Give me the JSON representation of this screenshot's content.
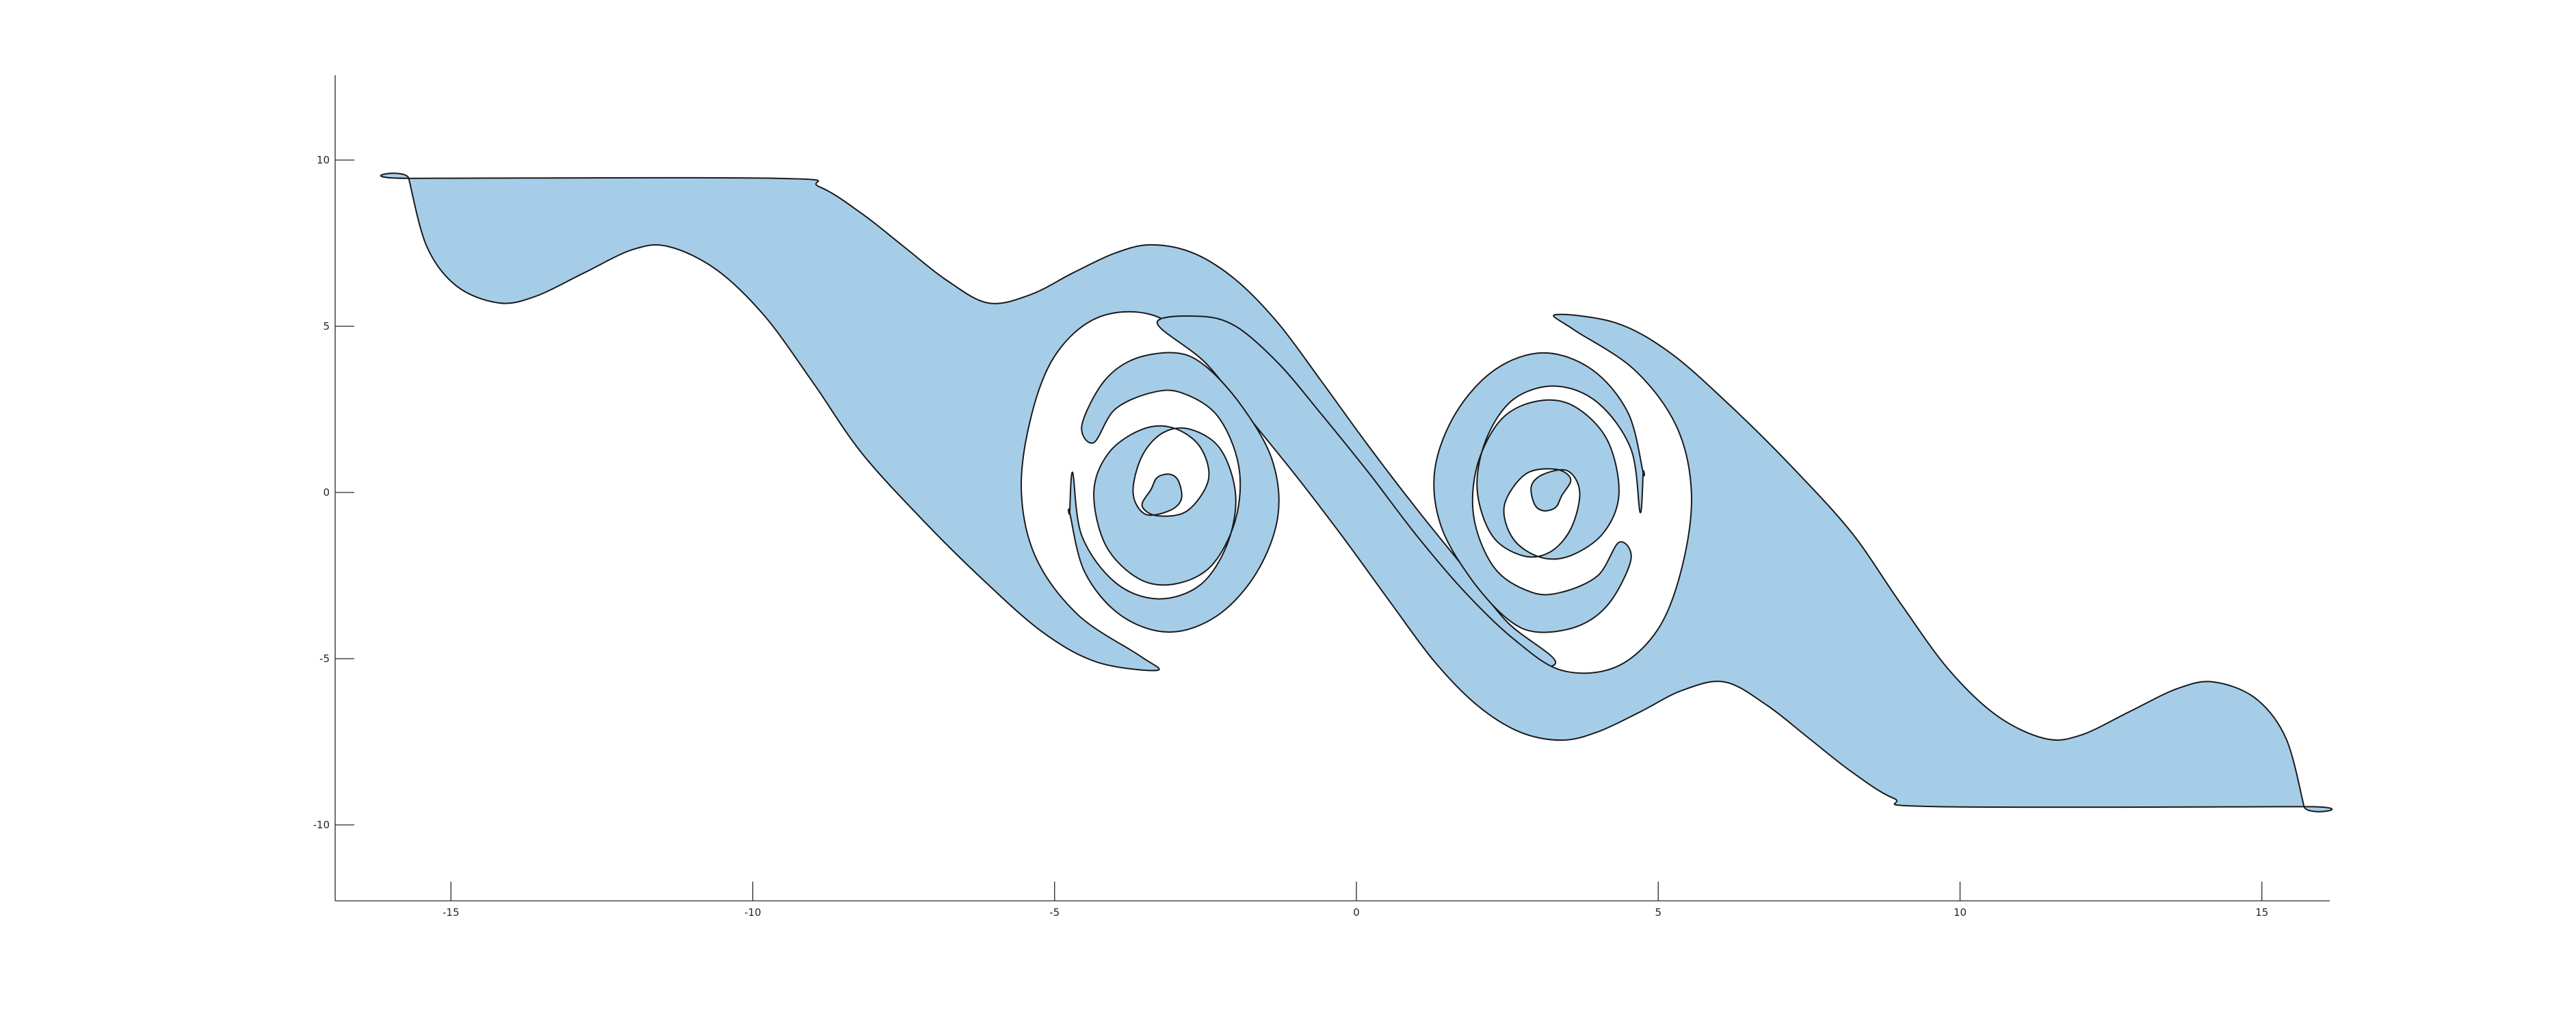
{
  "chart_data": {
    "type": "area",
    "title": "",
    "xlabel": "",
    "ylabel": "",
    "xlim": [
      -17,
      16.5
    ],
    "ylim": [
      -12.2,
      12.5
    ],
    "xticks": [
      -15,
      -10,
      -5,
      0,
      5,
      10,
      15
    ],
    "yticks": [
      -10,
      -5,
      0,
      5,
      10
    ],
    "xtick_labels": [
      "-15",
      "-10",
      "-5",
      "0",
      "5",
      "10",
      "15"
    ],
    "ytick_labels": [
      "-10",
      "-5",
      "0",
      "5",
      "10"
    ],
    "grid": false,
    "box": false,
    "fill_color": "#a6cde8",
    "edge_color": "#1a1a1a",
    "series": [
      {
        "values": [
          [
            -15.7,
            9.45
          ],
          [
            -15.2,
            9.2
          ],
          [
            -14.5,
            8.4
          ],
          [
            -13.8,
            7.3
          ],
          [
            -13.2,
            6.3
          ],
          [
            -12.5,
            5.7
          ],
          [
            -11.8,
            5.95
          ],
          [
            -11.2,
            6.6
          ],
          [
            -10.5,
            7.2
          ],
          [
            -9.8,
            7.45
          ],
          [
            -9.0,
            7.2
          ],
          [
            -8.2,
            6.3
          ],
          [
            -7.4,
            4.9
          ],
          [
            -6.6,
            3.1
          ],
          [
            -5.8,
            1.2
          ],
          [
            -5.0,
            -0.7
          ],
          [
            -4.4,
            -2.5
          ],
          [
            -3.9,
            -4.2
          ],
          [
            -3.3,
            -5.35
          ],
          [
            -2.6,
            -5.2
          ],
          [
            -2.0,
            -4.1
          ],
          [
            -1.6,
            -2.2
          ],
          [
            -1.35,
            -0.3
          ],
          [
            -1.5,
            1.6
          ],
          [
            -2.0,
            3.3
          ],
          [
            -2.6,
            4.1
          ],
          [
            -3.2,
            4.2
          ],
          [
            -3.9,
            3.7
          ],
          [
            -4.4,
            2.4
          ],
          [
            -4.7,
            0.6
          ],
          [
            -4.55,
            -1.3
          ],
          [
            -4.0,
            -2.7
          ],
          [
            -3.3,
            -3.2
          ],
          [
            -2.6,
            -2.8
          ],
          [
            -2.15,
            -1.6
          ],
          [
            -2.0,
            -0.1
          ],
          [
            -2.25,
            1.3
          ],
          [
            -2.75,
            1.9
          ],
          [
            -3.2,
            1.8
          ],
          [
            -3.55,
            1.1
          ],
          [
            -3.7,
            0.0
          ],
          [
            -3.5,
            -0.65
          ],
          [
            -3.1,
            -0.55
          ],
          [
            -2.9,
            -0.2
          ],
          [
            -2.95,
            0.35
          ],
          [
            -3.1,
            0.55
          ],
          [
            -3.3,
            0.45
          ],
          [
            -3.4,
            0.1
          ],
          [
            -3.55,
            -0.4
          ],
          [
            -3.3,
            -0.7
          ],
          [
            -2.8,
            -0.55
          ],
          [
            -2.45,
            0.4
          ],
          [
            -2.6,
            1.4
          ],
          [
            -3.05,
            1.95
          ],
          [
            -3.55,
            1.9
          ],
          [
            -4.1,
            1.2
          ],
          [
            -4.35,
            0.0
          ],
          [
            -4.15,
            -1.6
          ],
          [
            -3.6,
            -2.6
          ],
          [
            -3.0,
            -2.75
          ],
          [
            -2.4,
            -2.2
          ],
          [
            -2.0,
            -0.8
          ],
          [
            -1.95,
            0.8
          ],
          [
            -2.3,
            2.3
          ],
          [
            -2.9,
            3.0
          ],
          [
            -3.4,
            3.0
          ],
          [
            -4.0,
            2.5
          ],
          [
            -4.5,
            1.1
          ],
          [
            -4.75,
            -0.6
          ],
          [
            -4.5,
            -2.4
          ],
          [
            -3.9,
            -3.7
          ],
          [
            -3.1,
            -4.2
          ],
          [
            -2.3,
            -3.7
          ],
          [
            -1.65,
            -2.4
          ],
          [
            -1.3,
            -0.7
          ],
          [
            -1.4,
            1.0
          ],
          [
            -1.9,
            2.6
          ],
          [
            -2.5,
            4.0
          ],
          [
            -3.0,
            4.2
          ],
          [
            -3.7,
            4.0
          ],
          [
            -4.2,
            3.3
          ],
          [
            -4.8,
            1.7
          ],
          [
            -5.0,
            0.0
          ],
          [
            -4.7,
            -1.9
          ],
          [
            -4.0,
            -3.4
          ],
          [
            -3.2,
            -4.2
          ],
          [
            -2.2,
            -3.9
          ],
          [
            -1.2,
            -2.0
          ],
          [
            -0.2,
            0.4
          ],
          [
            0.8,
            2.4
          ],
          [
            1.9,
            3.9
          ],
          [
            3.3,
            5.4
          ]
        ]
      }
    ]
  }
}
